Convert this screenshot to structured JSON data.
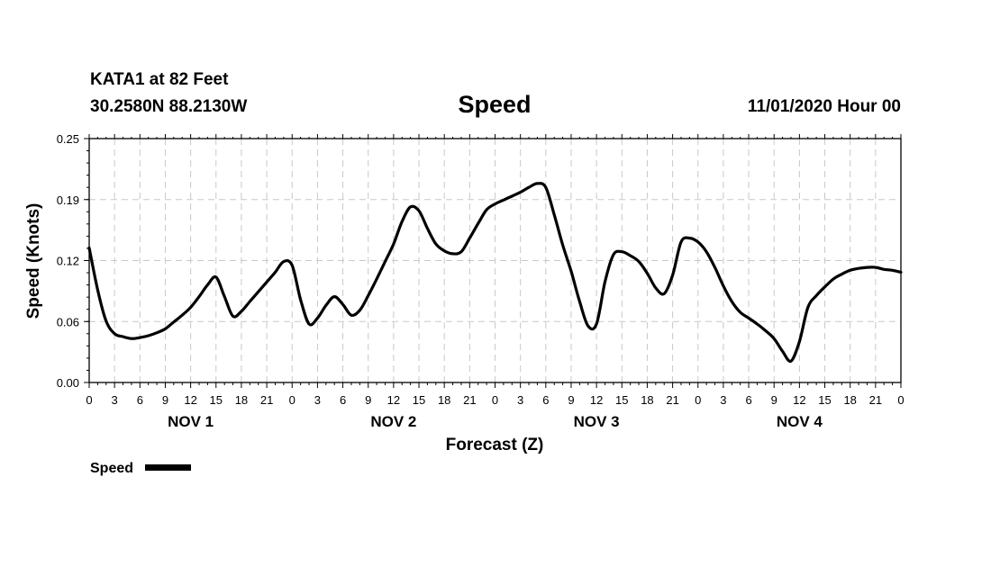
{
  "header": {
    "station": "KATA1 at 82 Feet",
    "coords": "30.2580N 88.2130W",
    "title": "Speed",
    "datetime": "11/01/2020 Hour 00"
  },
  "chart_data": {
    "type": "line",
    "title": "Speed",
    "xlabel": "Forecast (Z)",
    "ylabel": "Speed (Knots)",
    "x_unit": "forecast hour",
    "xlim": [
      0,
      96
    ],
    "ylim": [
      0,
      0.25
    ],
    "y_ticks": [
      "0.00",
      "0.06",
      "0.12",
      "0.19",
      "0.25"
    ],
    "x_tick_labels": [
      "0",
      "3",
      "6",
      "9",
      "12",
      "15",
      "18",
      "21",
      "0",
      "3",
      "6",
      "9",
      "12",
      "15",
      "18",
      "21",
      "0",
      "3",
      "6",
      "9",
      "12",
      "15",
      "18",
      "21",
      "0",
      "3",
      "6",
      "9",
      "12",
      "15",
      "18",
      "21",
      "0"
    ],
    "day_labels": [
      "NOV 1",
      "NOV 2",
      "NOV 3",
      "NOV 4"
    ],
    "grid": true,
    "legend_position": "bottom-left",
    "series": [
      {
        "name": "Speed",
        "color": "#000000",
        "x": [
          0,
          1,
          2,
          3,
          4,
          5,
          6,
          7,
          8,
          9,
          10,
          11,
          12,
          13,
          14,
          15,
          16,
          17,
          18,
          19,
          20,
          21,
          22,
          23,
          24,
          25,
          26,
          27,
          28,
          29,
          30,
          31,
          32,
          33,
          34,
          35,
          36,
          37,
          38,
          39,
          40,
          41,
          42,
          43,
          44,
          45,
          46,
          47,
          48,
          49,
          50,
          51,
          52,
          53,
          54,
          55,
          56,
          57,
          58,
          59,
          60,
          61,
          62,
          63,
          64,
          65,
          66,
          67,
          68,
          69,
          70,
          71,
          72,
          73,
          74,
          75,
          76,
          77,
          78,
          79,
          80,
          81,
          82,
          83,
          84,
          85,
          86,
          87,
          88,
          89,
          90,
          91,
          92,
          93,
          94,
          95,
          96
        ],
        "values": [
          0.138,
          0.095,
          0.063,
          0.05,
          0.047,
          0.045,
          0.046,
          0.048,
          0.051,
          0.055,
          0.062,
          0.069,
          0.077,
          0.088,
          0.1,
          0.108,
          0.088,
          0.068,
          0.073,
          0.083,
          0.093,
          0.103,
          0.113,
          0.124,
          0.12,
          0.085,
          0.06,
          0.066,
          0.079,
          0.088,
          0.08,
          0.069,
          0.074,
          0.089,
          0.106,
          0.124,
          0.142,
          0.165,
          0.18,
          0.176,
          0.158,
          0.142,
          0.135,
          0.132,
          0.134,
          0.148,
          0.163,
          0.177,
          0.183,
          0.187,
          0.191,
          0.195,
          0.2,
          0.204,
          0.2,
          0.172,
          0.141,
          0.114,
          0.083,
          0.058,
          0.06,
          0.103,
          0.131,
          0.134,
          0.13,
          0.124,
          0.112,
          0.097,
          0.091,
          0.11,
          0.144,
          0.148,
          0.144,
          0.134,
          0.118,
          0.099,
          0.083,
          0.072,
          0.066,
          0.06,
          0.053,
          0.045,
          0.032,
          0.022,
          0.042,
          0.077,
          0.089,
          0.098,
          0.106,
          0.111,
          0.115,
          0.117,
          0.118,
          0.118,
          0.116,
          0.115,
          0.113
        ]
      }
    ]
  }
}
